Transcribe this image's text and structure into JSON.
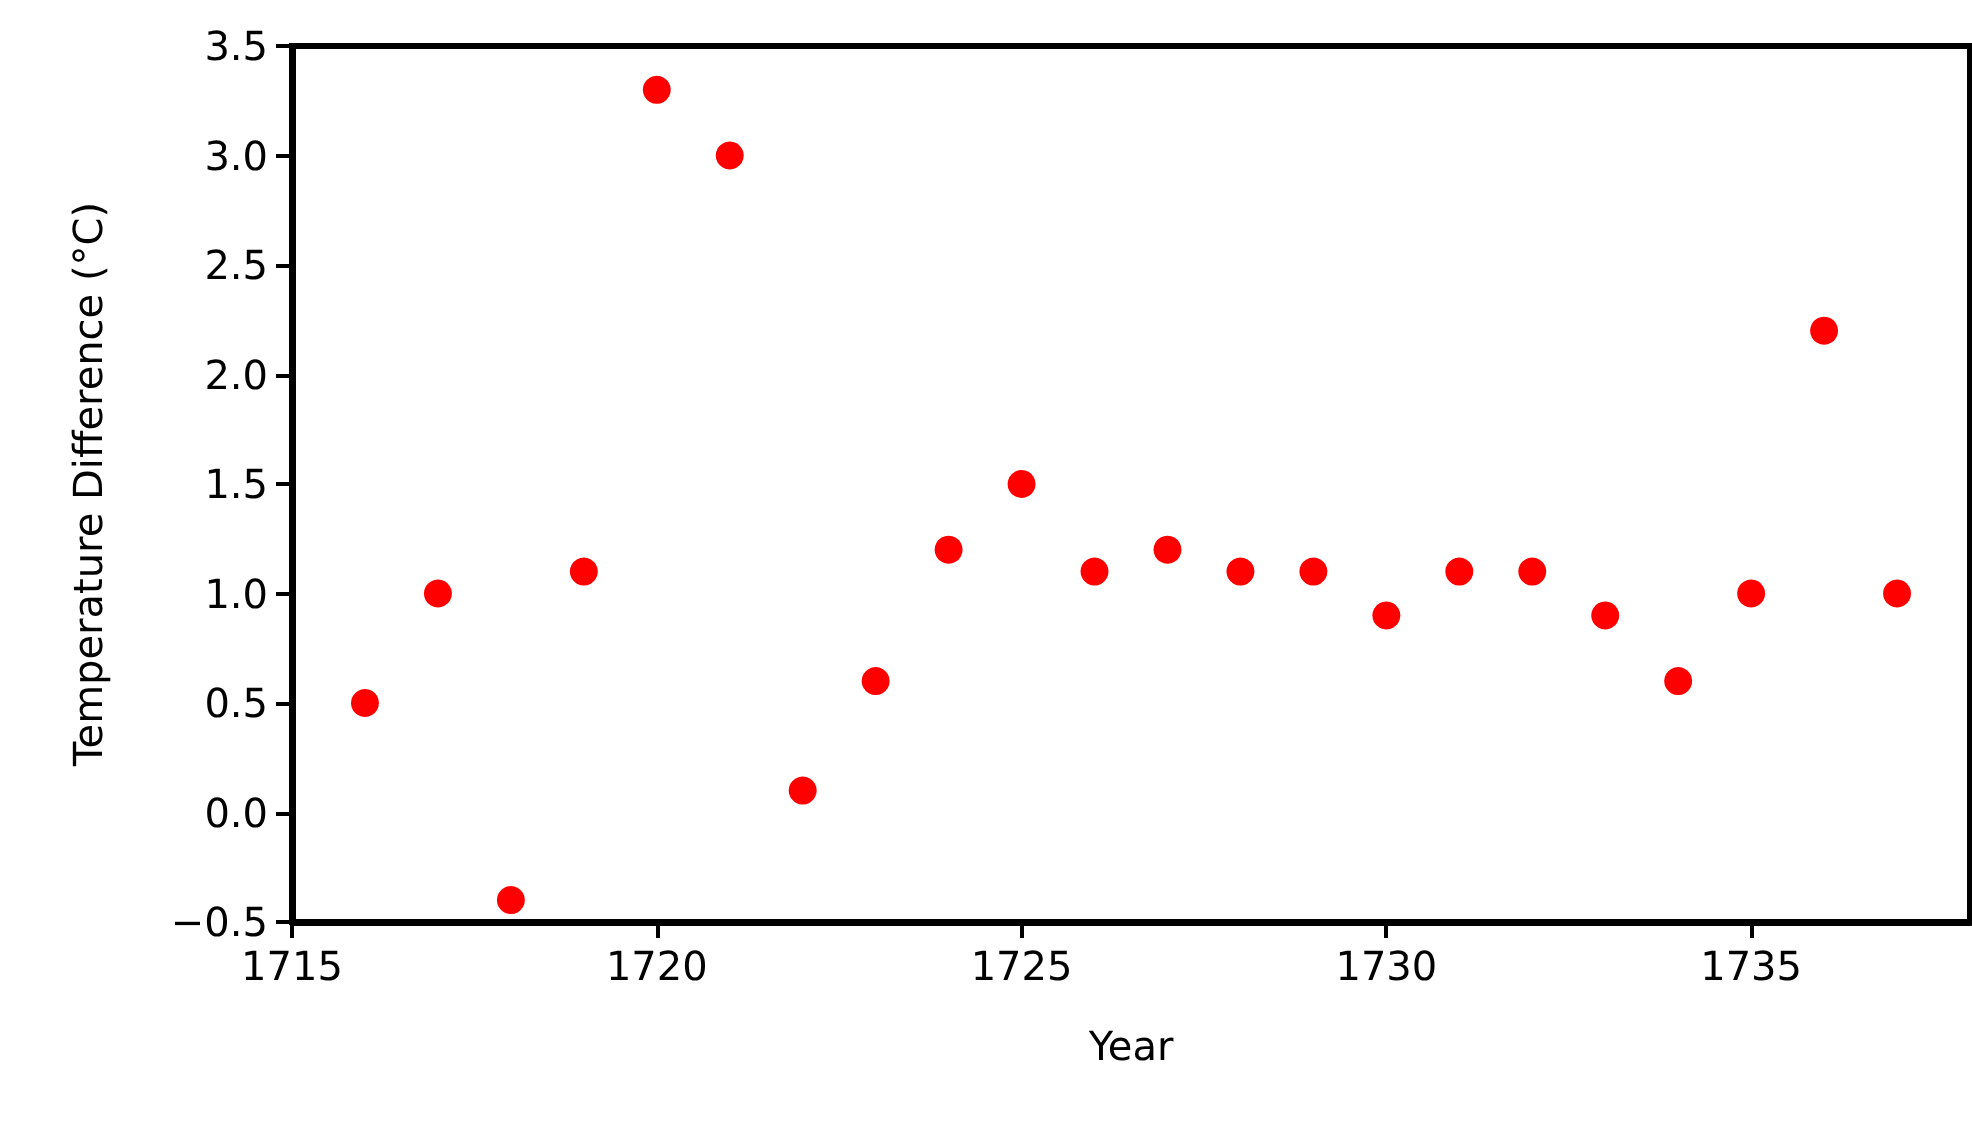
{
  "chart_data": {
    "type": "scatter",
    "xlabel": "Year",
    "ylabel": "Temperature Difference (°C)",
    "x": [
      1716,
      1717,
      1718,
      1719,
      1720,
      1721,
      1722,
      1723,
      1724,
      1725,
      1726,
      1727,
      1728,
      1729,
      1730,
      1731,
      1732,
      1733,
      1734,
      1735,
      1736,
      1737
    ],
    "series": [
      {
        "color": "#ff0000",
        "values": [
          0.5,
          1.0,
          -0.4,
          1.1,
          3.3,
          3.0,
          0.1,
          0.6,
          1.2,
          1.5,
          1.1,
          1.2,
          1.1,
          1.1,
          0.9,
          1.1,
          1.1,
          0.9,
          0.6,
          1.0,
          2.2,
          1.0
        ]
      }
    ],
    "marker": "circle",
    "grid": false,
    "xlim": [
      1715,
      1738
    ],
    "xticks": [
      1715,
      1720,
      1725,
      1730,
      1735
    ],
    "ylim": [
      -0.5,
      3.5
    ],
    "yticks": [
      {
        "value": -0.5,
        "label": "−0.5"
      },
      {
        "value": 0,
        "label": "0.0"
      },
      {
        "value": 0.5,
        "label": "0.5"
      },
      {
        "value": 1,
        "label": "1.0"
      },
      {
        "value": 1.5,
        "label": "1.5"
      },
      {
        "value": 2,
        "label": "2.0"
      },
      {
        "value": 2.5,
        "label": "2.5"
      },
      {
        "value": 3,
        "label": "3.0"
      },
      {
        "value": 3.5,
        "label": "3.5"
      }
    ]
  }
}
